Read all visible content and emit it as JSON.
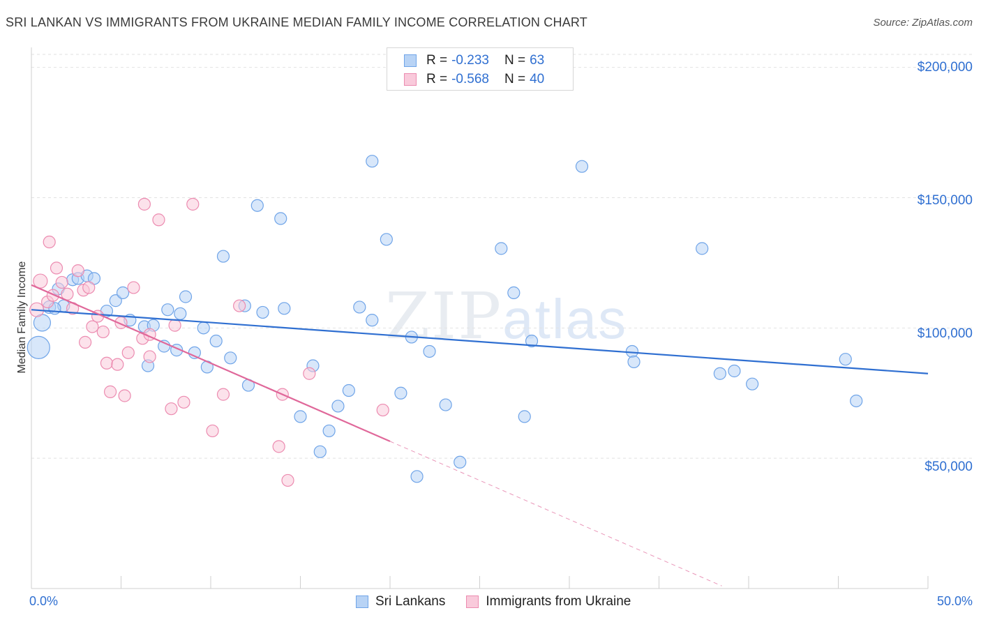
{
  "title": "SRI LANKAN VS IMMIGRANTS FROM UKRAINE MEDIAN FAMILY INCOME CORRELATION CHART",
  "source": "Source: ZipAtlas.com",
  "watermark_main": "ZIP",
  "watermark_sub": "atlas",
  "legend_top": [
    {
      "r_label": "R =",
      "r_value": "-0.233",
      "n_label": "N =",
      "n_value": "63",
      "color": "#6fa4e8",
      "fill": "#b8d3f5"
    },
    {
      "r_label": "R =",
      "r_value": "-0.568",
      "n_label": "N =",
      "n_value": "40",
      "color": "#ec8bb0",
      "fill": "#f9cadb"
    }
  ],
  "chart_data": {
    "type": "scatter",
    "ylabel": "Median Family Income",
    "xlim": [
      0,
      50
    ],
    "ylim": [
      0,
      205000
    ],
    "x_tick_labels": [
      "0.0%",
      "50.0%"
    ],
    "y_tick_labels": [
      "$50,000",
      "$100,000",
      "$150,000",
      "$200,000"
    ],
    "y_ticks": [
      50000,
      100000,
      150000,
      200000
    ],
    "grid": true,
    "series": [
      {
        "name": "Sri Lankans",
        "color": "#6fa4e8",
        "fill": "#b8d3f5",
        "trend": {
          "x": [
            0,
            50
          ],
          "y": [
            107000,
            82500
          ],
          "color": "#2f6fd1"
        },
        "points": [
          {
            "x": 0.4,
            "y": 92500,
            "size": 16
          },
          {
            "x": 0.6,
            "y": 102000,
            "size": 12
          },
          {
            "x": 1.0,
            "y": 108000,
            "size": 9
          },
          {
            "x": 1.5,
            "y": 115000
          },
          {
            "x": 1.8,
            "y": 108500
          },
          {
            "x": 2.3,
            "y": 118500
          },
          {
            "x": 2.6,
            "y": 119000
          },
          {
            "x": 3.1,
            "y": 120000
          },
          {
            "x": 3.5,
            "y": 119000
          },
          {
            "x": 4.2,
            "y": 106500
          },
          {
            "x": 4.7,
            "y": 110500
          },
          {
            "x": 5.1,
            "y": 113500
          },
          {
            "x": 5.5,
            "y": 103000
          },
          {
            "x": 6.3,
            "y": 100500
          },
          {
            "x": 6.5,
            "y": 85500
          },
          {
            "x": 6.8,
            "y": 101000
          },
          {
            "x": 7.4,
            "y": 93000
          },
          {
            "x": 7.6,
            "y": 107000
          },
          {
            "x": 8.1,
            "y": 91500
          },
          {
            "x": 8.3,
            "y": 105500
          },
          {
            "x": 8.6,
            "y": 112000
          },
          {
            "x": 9.1,
            "y": 90500
          },
          {
            "x": 9.6,
            "y": 100000
          },
          {
            "x": 9.8,
            "y": 85000
          },
          {
            "x": 10.3,
            "y": 95000
          },
          {
            "x": 10.7,
            "y": 127500
          },
          {
            "x": 11.1,
            "y": 88500
          },
          {
            "x": 11.9,
            "y": 108500
          },
          {
            "x": 12.1,
            "y": 78000
          },
          {
            "x": 12.6,
            "y": 147000
          },
          {
            "x": 12.9,
            "y": 106000
          },
          {
            "x": 13.9,
            "y": 142000
          },
          {
            "x": 14.1,
            "y": 107500
          },
          {
            "x": 15.0,
            "y": 66000
          },
          {
            "x": 15.7,
            "y": 85500
          },
          {
            "x": 16.1,
            "y": 52500
          },
          {
            "x": 16.6,
            "y": 60500
          },
          {
            "x": 17.1,
            "y": 70000
          },
          {
            "x": 17.7,
            "y": 76000
          },
          {
            "x": 18.3,
            "y": 108000
          },
          {
            "x": 19.0,
            "y": 164000
          },
          {
            "x": 19.0,
            "y": 103000
          },
          {
            "x": 19.8,
            "y": 134000
          },
          {
            "x": 20.6,
            "y": 75000
          },
          {
            "x": 21.2,
            "y": 96500
          },
          {
            "x": 21.5,
            "y": 43000
          },
          {
            "x": 22.2,
            "y": 91000
          },
          {
            "x": 23.1,
            "y": 70500
          },
          {
            "x": 23.9,
            "y": 48500
          },
          {
            "x": 26.2,
            "y": 130500
          },
          {
            "x": 26.9,
            "y": 113500
          },
          {
            "x": 27.5,
            "y": 66000
          },
          {
            "x": 27.9,
            "y": 95000
          },
          {
            "x": 30.7,
            "y": 162000
          },
          {
            "x": 33.5,
            "y": 91000
          },
          {
            "x": 33.6,
            "y": 87000
          },
          {
            "x": 37.4,
            "y": 130500
          },
          {
            "x": 38.4,
            "y": 82500
          },
          {
            "x": 39.2,
            "y": 83500
          },
          {
            "x": 40.2,
            "y": 78500
          },
          {
            "x": 45.4,
            "y": 88000
          },
          {
            "x": 46.0,
            "y": 72000
          },
          {
            "x": 1.3,
            "y": 107500
          }
        ]
      },
      {
        "name": "Immigrants from Ukraine",
        "color": "#ec8bb0",
        "fill": "#f9cadb",
        "trend": {
          "x": [
            0,
            20
          ],
          "y": [
            116500,
            56500
          ],
          "color": "#e0689a"
        },
        "trend_ext": {
          "x": [
            20,
            38.5
          ],
          "y": [
            56500,
            1000
          ]
        },
        "points": [
          {
            "x": 0.3,
            "y": 107000,
            "size": 10
          },
          {
            "x": 0.5,
            "y": 118000,
            "size": 10
          },
          {
            "x": 0.9,
            "y": 110000
          },
          {
            "x": 1.0,
            "y": 133000
          },
          {
            "x": 1.2,
            "y": 112500
          },
          {
            "x": 1.4,
            "y": 123000
          },
          {
            "x": 1.7,
            "y": 117500
          },
          {
            "x": 2.0,
            "y": 113000
          },
          {
            "x": 2.3,
            "y": 107500
          },
          {
            "x": 2.6,
            "y": 122000
          },
          {
            "x": 2.9,
            "y": 114500
          },
          {
            "x": 3.0,
            "y": 94500
          },
          {
            "x": 3.2,
            "y": 115500
          },
          {
            "x": 3.4,
            "y": 100500
          },
          {
            "x": 3.7,
            "y": 104500
          },
          {
            "x": 4.0,
            "y": 98500
          },
          {
            "x": 4.2,
            "y": 86500
          },
          {
            "x": 4.4,
            "y": 75500
          },
          {
            "x": 4.8,
            "y": 86000
          },
          {
            "x": 5.0,
            "y": 102000
          },
          {
            "x": 5.2,
            "y": 74000
          },
          {
            "x": 5.4,
            "y": 90500
          },
          {
            "x": 5.7,
            "y": 115500
          },
          {
            "x": 6.2,
            "y": 96000
          },
          {
            "x": 6.3,
            "y": 147500
          },
          {
            "x": 6.6,
            "y": 89000
          },
          {
            "x": 6.6,
            "y": 97500
          },
          {
            "x": 7.1,
            "y": 141500
          },
          {
            "x": 7.8,
            "y": 69000
          },
          {
            "x": 8.0,
            "y": 101000
          },
          {
            "x": 8.5,
            "y": 71500
          },
          {
            "x": 9.0,
            "y": 147500
          },
          {
            "x": 10.1,
            "y": 60500
          },
          {
            "x": 10.7,
            "y": 74500
          },
          {
            "x": 11.6,
            "y": 108500
          },
          {
            "x": 13.8,
            "y": 54500
          },
          {
            "x": 14.0,
            "y": 74500
          },
          {
            "x": 14.3,
            "y": 41500
          },
          {
            "x": 15.5,
            "y": 82500
          },
          {
            "x": 19.6,
            "y": 68500
          }
        ]
      }
    ]
  }
}
